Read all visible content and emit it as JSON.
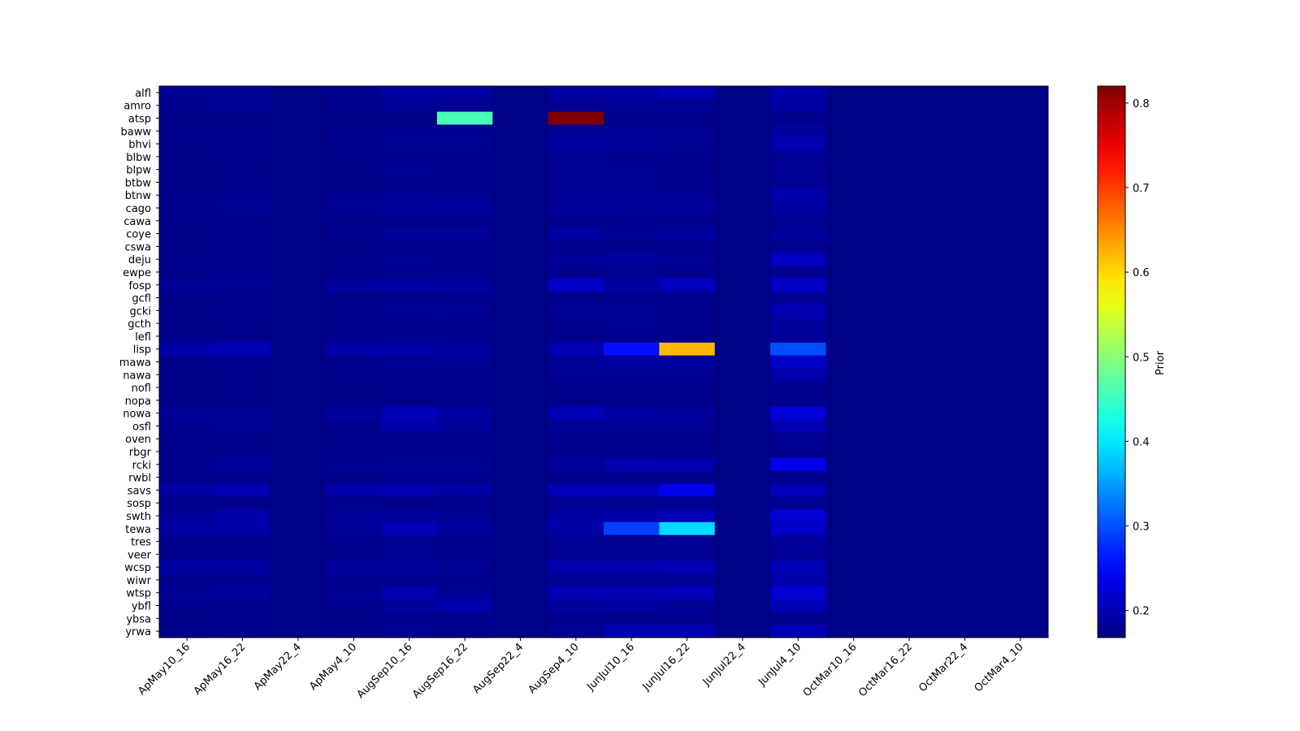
{
  "chart_data": {
    "type": "heatmap",
    "colormap": "jet",
    "colorbar_label": "Prior",
    "categories": [
      "ApMay10_16",
      "ApMay16_22",
      "ApMay22_4",
      "ApMay4_10",
      "AugSep10_16",
      "AugSep16_22",
      "AugSep22_4",
      "AugSep4_10",
      "JunJul10_16",
      "JunJul16_22",
      "JunJul22_4",
      "JunJul4_10",
      "OctMar10_16",
      "OctMar16_22",
      "OctMar22_4",
      "OctMar4_10"
    ],
    "y_categories": [
      "alfl",
      "amro",
      "atsp",
      "baww",
      "bhvi",
      "blbw",
      "blpw",
      "btbw",
      "btnw",
      "cago",
      "cawa",
      "coye",
      "cswa",
      "deju",
      "ewpe",
      "fosp",
      "gcfl",
      "gcki",
      "gcth",
      "lefl",
      "lisp",
      "mawa",
      "nawa",
      "nofl",
      "nopa",
      "nowa",
      "osfl",
      "oven",
      "rbgr",
      "rcki",
      "rwbl",
      "savs",
      "sosp",
      "swth",
      "tewa",
      "tres",
      "veer",
      "wcsp",
      "wiwr",
      "wtsp",
      "ybfl",
      "ybsa",
      "yrwa"
    ],
    "values": [
      [
        0.18,
        0.18,
        0.172,
        0.178,
        0.19,
        0.19,
        0.172,
        0.19,
        0.19,
        0.2,
        0.172,
        0.195,
        0.172,
        0.172,
        0.172,
        0.172
      ],
      [
        0.178,
        0.182,
        0.172,
        0.177,
        0.18,
        0.18,
        0.172,
        0.18,
        0.18,
        0.18,
        0.172,
        0.19,
        0.172,
        0.172,
        0.172,
        0.172
      ],
      [
        0.175,
        0.175,
        0.172,
        0.175,
        0.175,
        0.46,
        0.172,
        0.82,
        0.175,
        0.175,
        0.172,
        0.178,
        0.172,
        0.172,
        0.172,
        0.172
      ],
      [
        0.176,
        0.176,
        0.172,
        0.176,
        0.178,
        0.178,
        0.172,
        0.18,
        0.18,
        0.182,
        0.172,
        0.185,
        0.172,
        0.172,
        0.172,
        0.172
      ],
      [
        0.176,
        0.177,
        0.172,
        0.177,
        0.182,
        0.18,
        0.172,
        0.188,
        0.185,
        0.18,
        0.172,
        0.2,
        0.172,
        0.172,
        0.172,
        0.172
      ],
      [
        0.175,
        0.176,
        0.172,
        0.175,
        0.178,
        0.177,
        0.172,
        0.18,
        0.178,
        0.177,
        0.172,
        0.18,
        0.172,
        0.172,
        0.172,
        0.172
      ],
      [
        0.175,
        0.176,
        0.172,
        0.176,
        0.18,
        0.178,
        0.172,
        0.182,
        0.18,
        0.178,
        0.172,
        0.182,
        0.172,
        0.172,
        0.172,
        0.172
      ],
      [
        0.175,
        0.176,
        0.172,
        0.175,
        0.178,
        0.177,
        0.172,
        0.18,
        0.18,
        0.178,
        0.172,
        0.182,
        0.172,
        0.172,
        0.172,
        0.172
      ],
      [
        0.175,
        0.177,
        0.172,
        0.176,
        0.18,
        0.18,
        0.172,
        0.182,
        0.185,
        0.182,
        0.172,
        0.195,
        0.172,
        0.172,
        0.172,
        0.172
      ],
      [
        0.178,
        0.182,
        0.172,
        0.182,
        0.185,
        0.188,
        0.172,
        0.185,
        0.182,
        0.185,
        0.172,
        0.188,
        0.172,
        0.172,
        0.172,
        0.172
      ],
      [
        0.175,
        0.176,
        0.172,
        0.175,
        0.177,
        0.177,
        0.172,
        0.178,
        0.178,
        0.177,
        0.172,
        0.18,
        0.172,
        0.172,
        0.172,
        0.172
      ],
      [
        0.176,
        0.178,
        0.172,
        0.178,
        0.185,
        0.185,
        0.172,
        0.19,
        0.18,
        0.188,
        0.172,
        0.185,
        0.172,
        0.172,
        0.172,
        0.172
      ],
      [
        0.175,
        0.176,
        0.172,
        0.175,
        0.177,
        0.177,
        0.172,
        0.178,
        0.178,
        0.178,
        0.172,
        0.18,
        0.172,
        0.172,
        0.172,
        0.172
      ],
      [
        0.176,
        0.177,
        0.172,
        0.177,
        0.182,
        0.178,
        0.172,
        0.185,
        0.188,
        0.182,
        0.172,
        0.21,
        0.172,
        0.172,
        0.172,
        0.172
      ],
      [
        0.175,
        0.176,
        0.172,
        0.175,
        0.177,
        0.177,
        0.172,
        0.178,
        0.178,
        0.177,
        0.172,
        0.18,
        0.172,
        0.172,
        0.172,
        0.172
      ],
      [
        0.18,
        0.182,
        0.172,
        0.188,
        0.192,
        0.188,
        0.172,
        0.215,
        0.188,
        0.21,
        0.172,
        0.215,
        0.172,
        0.172,
        0.172,
        0.172
      ],
      [
        0.175,
        0.176,
        0.172,
        0.175,
        0.177,
        0.177,
        0.172,
        0.178,
        0.178,
        0.177,
        0.172,
        0.18,
        0.172,
        0.172,
        0.172,
        0.172
      ],
      [
        0.176,
        0.177,
        0.172,
        0.176,
        0.182,
        0.18,
        0.172,
        0.18,
        0.18,
        0.178,
        0.172,
        0.2,
        0.172,
        0.172,
        0.172,
        0.172
      ],
      [
        0.175,
        0.176,
        0.172,
        0.176,
        0.178,
        0.177,
        0.172,
        0.178,
        0.18,
        0.178,
        0.172,
        0.185,
        0.172,
        0.172,
        0.172,
        0.172
      ],
      [
        0.175,
        0.176,
        0.172,
        0.175,
        0.178,
        0.177,
        0.172,
        0.178,
        0.178,
        0.178,
        0.172,
        0.185,
        0.172,
        0.172,
        0.172,
        0.172
      ],
      [
        0.195,
        0.205,
        0.172,
        0.195,
        0.195,
        0.188,
        0.172,
        0.2,
        0.26,
        0.62,
        0.172,
        0.3,
        0.172,
        0.172,
        0.172,
        0.172
      ],
      [
        0.176,
        0.178,
        0.172,
        0.178,
        0.182,
        0.18,
        0.172,
        0.182,
        0.19,
        0.19,
        0.172,
        0.215,
        0.172,
        0.172,
        0.172,
        0.172
      ],
      [
        0.175,
        0.176,
        0.172,
        0.176,
        0.178,
        0.178,
        0.172,
        0.18,
        0.18,
        0.18,
        0.172,
        0.195,
        0.172,
        0.172,
        0.172,
        0.172
      ],
      [
        0.175,
        0.176,
        0.172,
        0.175,
        0.177,
        0.177,
        0.172,
        0.177,
        0.177,
        0.177,
        0.172,
        0.178,
        0.172,
        0.172,
        0.172,
        0.172
      ],
      [
        0.175,
        0.175,
        0.172,
        0.175,
        0.176,
        0.176,
        0.172,
        0.176,
        0.176,
        0.176,
        0.172,
        0.177,
        0.172,
        0.172,
        0.172,
        0.172
      ],
      [
        0.182,
        0.182,
        0.172,
        0.185,
        0.205,
        0.19,
        0.172,
        0.205,
        0.19,
        0.185,
        0.172,
        0.225,
        0.172,
        0.172,
        0.172,
        0.172
      ],
      [
        0.178,
        0.18,
        0.172,
        0.178,
        0.195,
        0.185,
        0.172,
        0.182,
        0.182,
        0.18,
        0.172,
        0.2,
        0.172,
        0.172,
        0.172,
        0.172
      ],
      [
        0.176,
        0.176,
        0.172,
        0.176,
        0.178,
        0.178,
        0.172,
        0.178,
        0.178,
        0.178,
        0.172,
        0.182,
        0.172,
        0.172,
        0.172,
        0.172
      ],
      [
        0.175,
        0.176,
        0.172,
        0.175,
        0.177,
        0.177,
        0.172,
        0.177,
        0.177,
        0.177,
        0.172,
        0.178,
        0.172,
        0.172,
        0.172,
        0.172
      ],
      [
        0.178,
        0.188,
        0.172,
        0.18,
        0.182,
        0.18,
        0.172,
        0.185,
        0.2,
        0.198,
        0.172,
        0.235,
        0.172,
        0.172,
        0.172,
        0.172
      ],
      [
        0.175,
        0.176,
        0.172,
        0.175,
        0.177,
        0.177,
        0.172,
        0.177,
        0.177,
        0.177,
        0.172,
        0.178,
        0.172,
        0.172,
        0.172,
        0.172
      ],
      [
        0.19,
        0.2,
        0.172,
        0.195,
        0.198,
        0.192,
        0.172,
        0.205,
        0.205,
        0.235,
        0.172,
        0.205,
        0.172,
        0.172,
        0.172,
        0.172
      ],
      [
        0.176,
        0.177,
        0.172,
        0.176,
        0.178,
        0.178,
        0.172,
        0.18,
        0.18,
        0.18,
        0.172,
        0.182,
        0.172,
        0.172,
        0.172,
        0.172
      ],
      [
        0.185,
        0.195,
        0.172,
        0.188,
        0.185,
        0.18,
        0.172,
        0.19,
        0.195,
        0.205,
        0.172,
        0.22,
        0.172,
        0.172,
        0.172,
        0.172
      ],
      [
        0.19,
        0.195,
        0.172,
        0.182,
        0.205,
        0.188,
        0.172,
        0.195,
        0.29,
        0.39,
        0.172,
        0.215,
        0.172,
        0.172,
        0.172,
        0.172
      ],
      [
        0.176,
        0.178,
        0.172,
        0.177,
        0.18,
        0.178,
        0.172,
        0.18,
        0.18,
        0.18,
        0.172,
        0.185,
        0.172,
        0.172,
        0.172,
        0.172
      ],
      [
        0.176,
        0.177,
        0.172,
        0.176,
        0.182,
        0.178,
        0.172,
        0.18,
        0.18,
        0.18,
        0.172,
        0.182,
        0.172,
        0.172,
        0.172,
        0.172
      ],
      [
        0.19,
        0.19,
        0.172,
        0.188,
        0.185,
        0.18,
        0.172,
        0.198,
        0.198,
        0.2,
        0.172,
        0.205,
        0.172,
        0.172,
        0.172,
        0.172
      ],
      [
        0.176,
        0.177,
        0.172,
        0.176,
        0.178,
        0.178,
        0.172,
        0.18,
        0.18,
        0.182,
        0.172,
        0.195,
        0.172,
        0.172,
        0.172,
        0.172
      ],
      [
        0.182,
        0.188,
        0.172,
        0.18,
        0.2,
        0.182,
        0.172,
        0.2,
        0.198,
        0.205,
        0.172,
        0.22,
        0.172,
        0.172,
        0.172,
        0.172
      ],
      [
        0.177,
        0.178,
        0.172,
        0.177,
        0.185,
        0.195,
        0.172,
        0.185,
        0.19,
        0.182,
        0.172,
        0.205,
        0.172,
        0.172,
        0.172,
        0.172
      ],
      [
        0.175,
        0.176,
        0.172,
        0.175,
        0.177,
        0.177,
        0.172,
        0.177,
        0.178,
        0.178,
        0.172,
        0.178,
        0.172,
        0.172,
        0.172,
        0.172
      ],
      [
        0.176,
        0.177,
        0.172,
        0.177,
        0.18,
        0.178,
        0.172,
        0.18,
        0.198,
        0.198,
        0.172,
        0.2,
        0.172,
        0.172,
        0.172,
        0.172
      ]
    ],
    "clim": [
      0.168,
      0.82
    ],
    "cticks": [
      0.2,
      0.3,
      0.4,
      0.5,
      0.6,
      0.7,
      0.8
    ]
  }
}
